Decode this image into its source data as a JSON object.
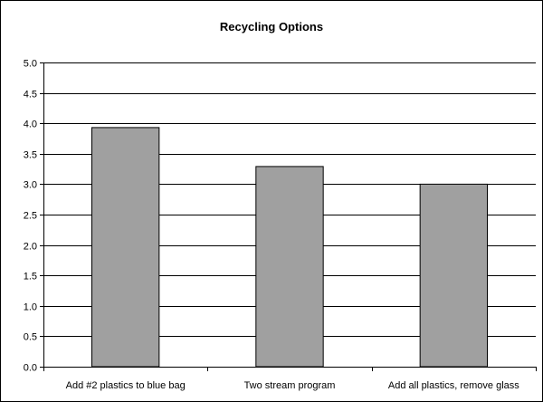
{
  "chart_data": {
    "type": "bar",
    "title": "Recycling Options",
    "xlabel": "",
    "ylabel": "",
    "categories": [
      "Add #2 plastics to blue bag",
      "Two stream program",
      "Add all plastics, remove glass"
    ],
    "values": [
      3.93,
      3.29,
      3.0
    ],
    "ylim": [
      0,
      5
    ],
    "yticks": [
      "0.0",
      "0.5",
      "1.0",
      "1.5",
      "2.0",
      "2.5",
      "3.0",
      "3.5",
      "4.0",
      "4.5",
      "5.0"
    ],
    "grid": true,
    "legend": "none",
    "colors": {
      "bar_fill": "#a0a0a0",
      "bar_stroke": "#000000",
      "grid": "#000000",
      "axis": "#000000",
      "background": "#ffffff"
    }
  }
}
